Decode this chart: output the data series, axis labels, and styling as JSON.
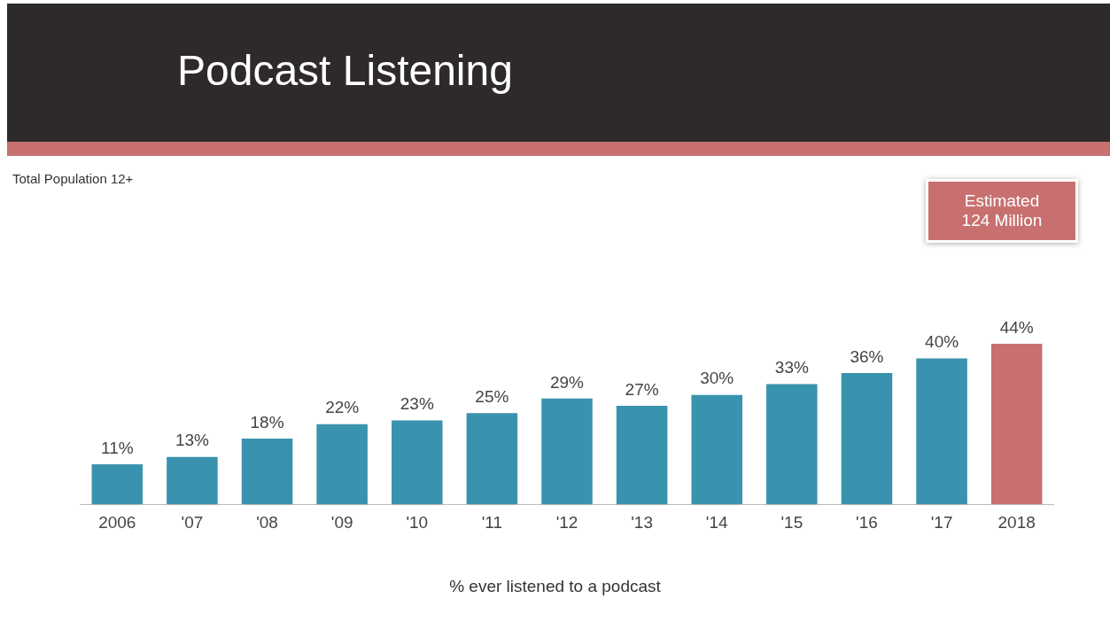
{
  "chart_data": {
    "type": "bar",
    "title": "Podcast Listening",
    "subtitle": "Total Population 12+",
    "xlabel": "% ever listened to a podcast",
    "annotations": [
      "Estimated\n124 Million"
    ],
    "categories": [
      "2006",
      "'07",
      "'08",
      "'09",
      "'10",
      "'11",
      "'12",
      "'13",
      "'14",
      "'15",
      "'16",
      "'17",
      "2018"
    ],
    "values": [
      11,
      13,
      18,
      22,
      23,
      25,
      29,
      27,
      30,
      33,
      36,
      40,
      44
    ],
    "value_labels": [
      "11%",
      "13%",
      "18%",
      "22%",
      "23%",
      "25%",
      "29%",
      "27%",
      "30%",
      "33%",
      "36%",
      "40%",
      "44%"
    ],
    "colors": [
      "#3a93ae",
      "#3a93ae",
      "#3a93ae",
      "#3a93ae",
      "#3a93ae",
      "#3a93ae",
      "#3a93ae",
      "#3a93ae",
      "#3a93ae",
      "#3a93ae",
      "#3a93ae",
      "#3a93ae",
      "#c87070"
    ],
    "grid": false,
    "legend": false
  }
}
